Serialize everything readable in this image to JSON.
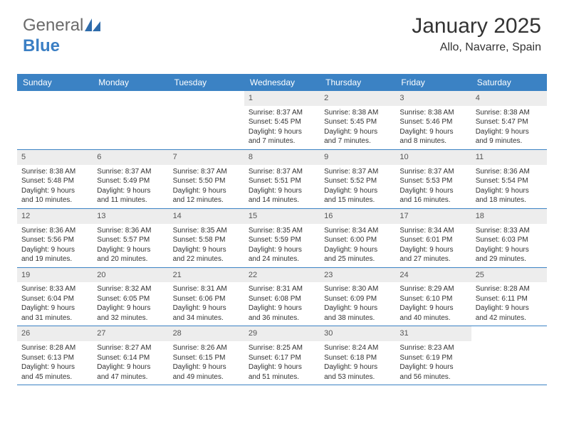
{
  "logo": {
    "part1": "General",
    "part2": "Blue"
  },
  "header": {
    "month": "January 2025",
    "location": "Allo, Navarre, Spain"
  },
  "colors": {
    "header_bg": "#3b82c4",
    "header_text": "#ffffff",
    "daynum_bg": "#ededed",
    "border": "#3b82c4",
    "body_text": "#333333",
    "logo_gray": "#6a6a6a",
    "logo_blue": "#3b7fc4"
  },
  "typography": {
    "month_fontsize": 30,
    "location_fontsize": 16,
    "weekday_fontsize": 12,
    "cell_fontsize": 10,
    "logo_fontsize": 24
  },
  "weekdays": [
    "Sunday",
    "Monday",
    "Tuesday",
    "Wednesday",
    "Thursday",
    "Friday",
    "Saturday"
  ],
  "weeks": [
    [
      {
        "n": "",
        "sr": "",
        "ss": "",
        "d1": "",
        "d2": ""
      },
      {
        "n": "",
        "sr": "",
        "ss": "",
        "d1": "",
        "d2": ""
      },
      {
        "n": "",
        "sr": "",
        "ss": "",
        "d1": "",
        "d2": ""
      },
      {
        "n": "1",
        "sr": "Sunrise: 8:37 AM",
        "ss": "Sunset: 5:45 PM",
        "d1": "Daylight: 9 hours",
        "d2": "and 7 minutes."
      },
      {
        "n": "2",
        "sr": "Sunrise: 8:38 AM",
        "ss": "Sunset: 5:45 PM",
        "d1": "Daylight: 9 hours",
        "d2": "and 7 minutes."
      },
      {
        "n": "3",
        "sr": "Sunrise: 8:38 AM",
        "ss": "Sunset: 5:46 PM",
        "d1": "Daylight: 9 hours",
        "d2": "and 8 minutes."
      },
      {
        "n": "4",
        "sr": "Sunrise: 8:38 AM",
        "ss": "Sunset: 5:47 PM",
        "d1": "Daylight: 9 hours",
        "d2": "and 9 minutes."
      }
    ],
    [
      {
        "n": "5",
        "sr": "Sunrise: 8:38 AM",
        "ss": "Sunset: 5:48 PM",
        "d1": "Daylight: 9 hours",
        "d2": "and 10 minutes."
      },
      {
        "n": "6",
        "sr": "Sunrise: 8:37 AM",
        "ss": "Sunset: 5:49 PM",
        "d1": "Daylight: 9 hours",
        "d2": "and 11 minutes."
      },
      {
        "n": "7",
        "sr": "Sunrise: 8:37 AM",
        "ss": "Sunset: 5:50 PM",
        "d1": "Daylight: 9 hours",
        "d2": "and 12 minutes."
      },
      {
        "n": "8",
        "sr": "Sunrise: 8:37 AM",
        "ss": "Sunset: 5:51 PM",
        "d1": "Daylight: 9 hours",
        "d2": "and 14 minutes."
      },
      {
        "n": "9",
        "sr": "Sunrise: 8:37 AM",
        "ss": "Sunset: 5:52 PM",
        "d1": "Daylight: 9 hours",
        "d2": "and 15 minutes."
      },
      {
        "n": "10",
        "sr": "Sunrise: 8:37 AM",
        "ss": "Sunset: 5:53 PM",
        "d1": "Daylight: 9 hours",
        "d2": "and 16 minutes."
      },
      {
        "n": "11",
        "sr": "Sunrise: 8:36 AM",
        "ss": "Sunset: 5:54 PM",
        "d1": "Daylight: 9 hours",
        "d2": "and 18 minutes."
      }
    ],
    [
      {
        "n": "12",
        "sr": "Sunrise: 8:36 AM",
        "ss": "Sunset: 5:56 PM",
        "d1": "Daylight: 9 hours",
        "d2": "and 19 minutes."
      },
      {
        "n": "13",
        "sr": "Sunrise: 8:36 AM",
        "ss": "Sunset: 5:57 PM",
        "d1": "Daylight: 9 hours",
        "d2": "and 20 minutes."
      },
      {
        "n": "14",
        "sr": "Sunrise: 8:35 AM",
        "ss": "Sunset: 5:58 PM",
        "d1": "Daylight: 9 hours",
        "d2": "and 22 minutes."
      },
      {
        "n": "15",
        "sr": "Sunrise: 8:35 AM",
        "ss": "Sunset: 5:59 PM",
        "d1": "Daylight: 9 hours",
        "d2": "and 24 minutes."
      },
      {
        "n": "16",
        "sr": "Sunrise: 8:34 AM",
        "ss": "Sunset: 6:00 PM",
        "d1": "Daylight: 9 hours",
        "d2": "and 25 minutes."
      },
      {
        "n": "17",
        "sr": "Sunrise: 8:34 AM",
        "ss": "Sunset: 6:01 PM",
        "d1": "Daylight: 9 hours",
        "d2": "and 27 minutes."
      },
      {
        "n": "18",
        "sr": "Sunrise: 8:33 AM",
        "ss": "Sunset: 6:03 PM",
        "d1": "Daylight: 9 hours",
        "d2": "and 29 minutes."
      }
    ],
    [
      {
        "n": "19",
        "sr": "Sunrise: 8:33 AM",
        "ss": "Sunset: 6:04 PM",
        "d1": "Daylight: 9 hours",
        "d2": "and 31 minutes."
      },
      {
        "n": "20",
        "sr": "Sunrise: 8:32 AM",
        "ss": "Sunset: 6:05 PM",
        "d1": "Daylight: 9 hours",
        "d2": "and 32 minutes."
      },
      {
        "n": "21",
        "sr": "Sunrise: 8:31 AM",
        "ss": "Sunset: 6:06 PM",
        "d1": "Daylight: 9 hours",
        "d2": "and 34 minutes."
      },
      {
        "n": "22",
        "sr": "Sunrise: 8:31 AM",
        "ss": "Sunset: 6:08 PM",
        "d1": "Daylight: 9 hours",
        "d2": "and 36 minutes."
      },
      {
        "n": "23",
        "sr": "Sunrise: 8:30 AM",
        "ss": "Sunset: 6:09 PM",
        "d1": "Daylight: 9 hours",
        "d2": "and 38 minutes."
      },
      {
        "n": "24",
        "sr": "Sunrise: 8:29 AM",
        "ss": "Sunset: 6:10 PM",
        "d1": "Daylight: 9 hours",
        "d2": "and 40 minutes."
      },
      {
        "n": "25",
        "sr": "Sunrise: 8:28 AM",
        "ss": "Sunset: 6:11 PM",
        "d1": "Daylight: 9 hours",
        "d2": "and 42 minutes."
      }
    ],
    [
      {
        "n": "26",
        "sr": "Sunrise: 8:28 AM",
        "ss": "Sunset: 6:13 PM",
        "d1": "Daylight: 9 hours",
        "d2": "and 45 minutes."
      },
      {
        "n": "27",
        "sr": "Sunrise: 8:27 AM",
        "ss": "Sunset: 6:14 PM",
        "d1": "Daylight: 9 hours",
        "d2": "and 47 minutes."
      },
      {
        "n": "28",
        "sr": "Sunrise: 8:26 AM",
        "ss": "Sunset: 6:15 PM",
        "d1": "Daylight: 9 hours",
        "d2": "and 49 minutes."
      },
      {
        "n": "29",
        "sr": "Sunrise: 8:25 AM",
        "ss": "Sunset: 6:17 PM",
        "d1": "Daylight: 9 hours",
        "d2": "and 51 minutes."
      },
      {
        "n": "30",
        "sr": "Sunrise: 8:24 AM",
        "ss": "Sunset: 6:18 PM",
        "d1": "Daylight: 9 hours",
        "d2": "and 53 minutes."
      },
      {
        "n": "31",
        "sr": "Sunrise: 8:23 AM",
        "ss": "Sunset: 6:19 PM",
        "d1": "Daylight: 9 hours",
        "d2": "and 56 minutes."
      },
      {
        "n": "",
        "sr": "",
        "ss": "",
        "d1": "",
        "d2": ""
      }
    ]
  ]
}
